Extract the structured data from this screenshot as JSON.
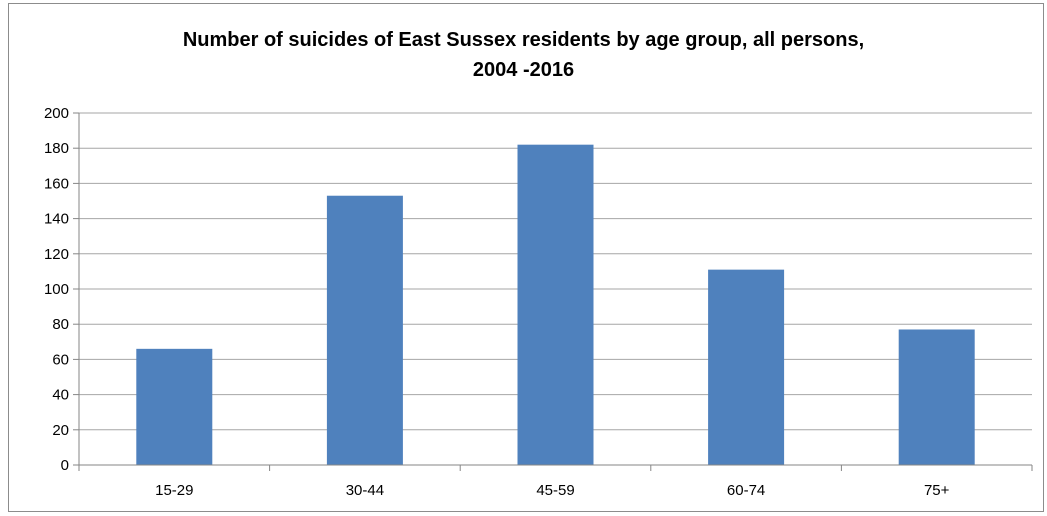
{
  "chart_data": {
    "type": "bar",
    "title_lines": [
      "Number of suicides  of East Sussex residents by age group, all persons,",
      "2004 -2016"
    ],
    "categories": [
      "15-29",
      "30-44",
      "45-59",
      "60-74",
      "75+"
    ],
    "values": [
      66,
      153,
      182,
      111,
      77
    ],
    "y_ticks": [
      "0",
      "20",
      "40",
      "60",
      "80",
      "100",
      "120",
      "140",
      "160",
      "180",
      "200"
    ],
    "ylim": [
      0,
      200
    ],
    "xlabel": "",
    "ylabel": "",
    "grid": true,
    "legend": "none",
    "bar_color": "#4f81bd",
    "grid_color": "#a6a6a6",
    "axis_color": "#868686"
  }
}
